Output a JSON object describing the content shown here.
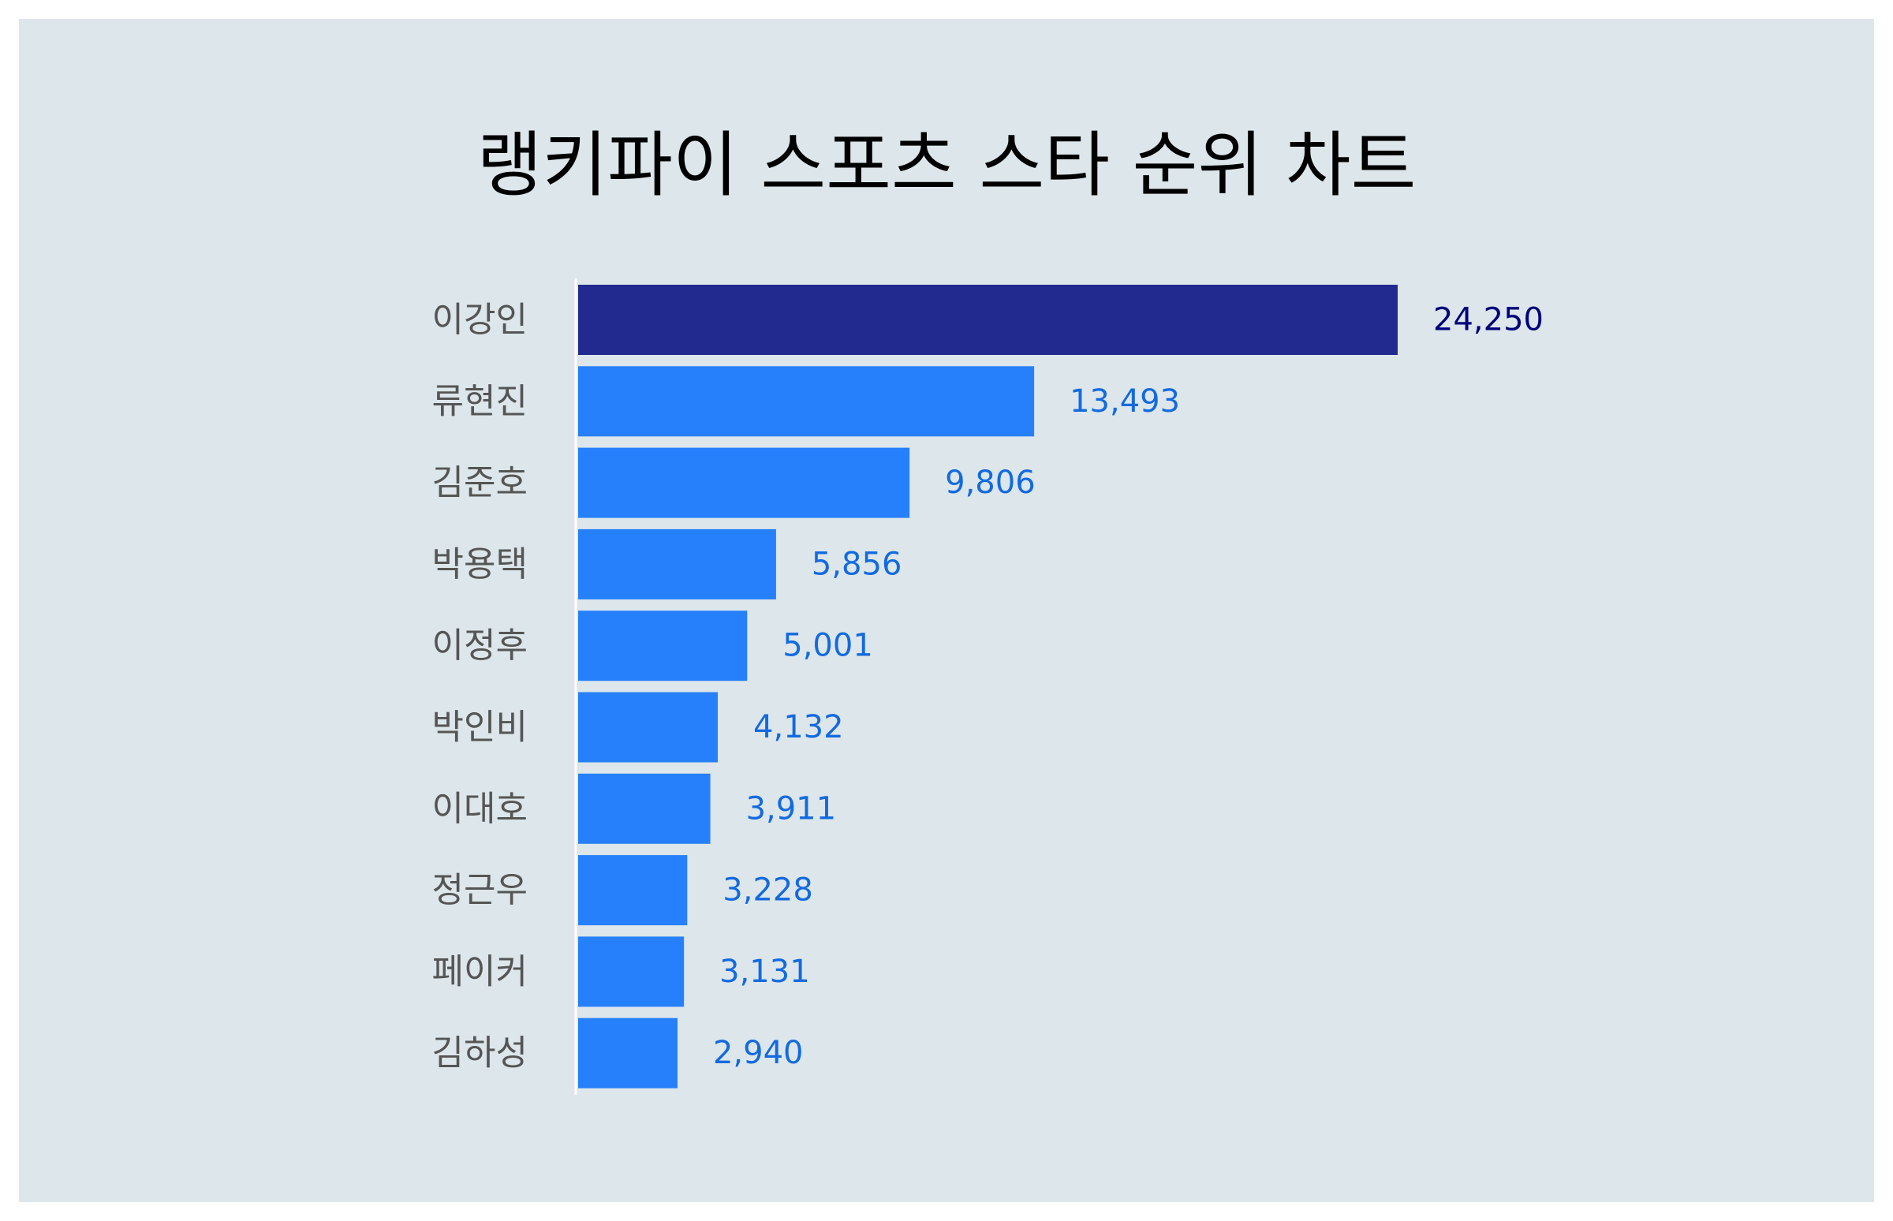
{
  "chart_data": {
    "type": "bar",
    "orientation": "horizontal",
    "title": "랭키파이 스포츠 스타 순위 차트",
    "categories": [
      "이강인",
      "류현진",
      "김준호",
      "박용택",
      "이정후",
      "박인비",
      "이대호",
      "정근우",
      "페이커",
      "김하성"
    ],
    "values": [
      24250,
      13493,
      9806,
      5856,
      5001,
      4132,
      3911,
      3228,
      3131,
      2940
    ],
    "value_labels": [
      "24,250",
      "13,493",
      "9,806",
      "5,856",
      "5,001",
      "4,132",
      "3,911",
      "3,228",
      "3,131",
      "2,940"
    ],
    "xlim": [
      0,
      24250
    ],
    "grid": false,
    "legend": false,
    "colors": {
      "highlight_bar": "#222a8f",
      "bar": "#2680fb",
      "highlight_label": "#00007b",
      "label": "#136adf",
      "category_label": "#555555",
      "axis_line": "#ffffff",
      "background": "#dce6eb"
    }
  }
}
